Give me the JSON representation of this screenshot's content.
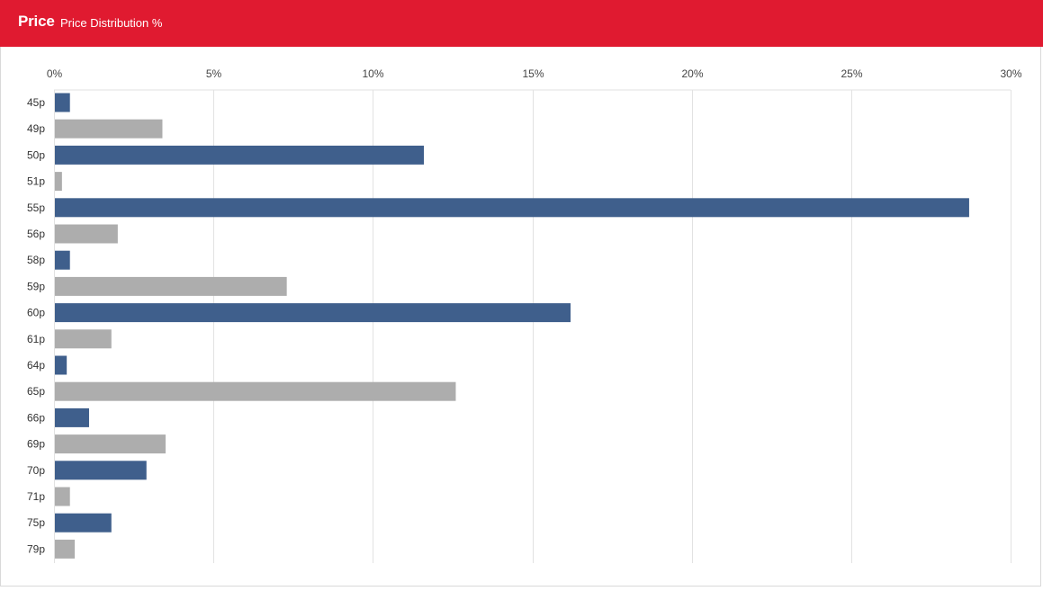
{
  "header": {
    "title": "Price",
    "subtitle": "Price Distribution %"
  },
  "colors": {
    "header_bg": "#e01a30",
    "bar_primary": "#3f5f8c",
    "bar_secondary": "#adadad",
    "grid": "#e2e2e2"
  },
  "chart_data": {
    "type": "bar",
    "orientation": "horizontal",
    "title": "Price Distribution %",
    "xlim": [
      0,
      30
    ],
    "x_ticks": [
      {
        "value": 0,
        "label": "0%"
      },
      {
        "value": 5,
        "label": "5%"
      },
      {
        "value": 10,
        "label": "10%"
      },
      {
        "value": 15,
        "label": "15%"
      },
      {
        "value": 20,
        "label": "20%"
      },
      {
        "value": 25,
        "label": "25%"
      },
      {
        "value": 30,
        "label": "30%"
      }
    ],
    "x_axis_position": "top",
    "grid": true,
    "categories": [
      "45p",
      "49p",
      "50p",
      "51p",
      "55p",
      "56p",
      "58p",
      "59p",
      "60p",
      "61p",
      "64p",
      "65p",
      "66p",
      "69p",
      "70p",
      "71p",
      "75p",
      "79p"
    ],
    "values": [
      0.5,
      3.4,
      11.6,
      0.25,
      28.7,
      2.0,
      0.5,
      7.3,
      16.2,
      1.8,
      0.4,
      12.6,
      1.1,
      3.5,
      2.9,
      0.5,
      1.8,
      0.65
    ],
    "bar_color_pattern": [
      "primary",
      "secondary"
    ]
  }
}
